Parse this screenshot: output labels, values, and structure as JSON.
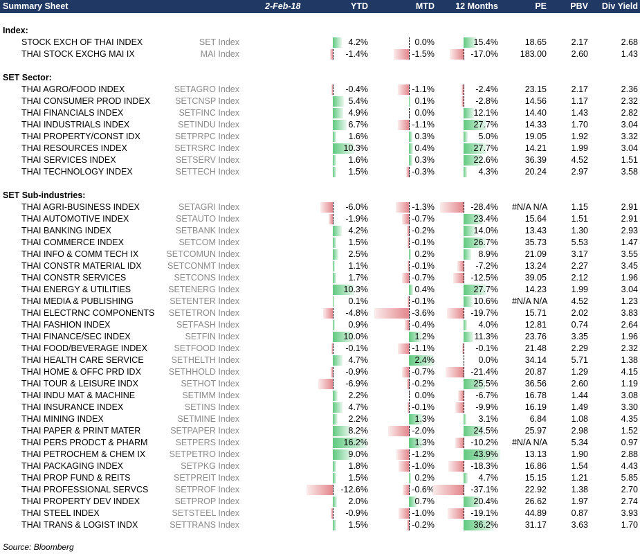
{
  "header": {
    "title": "Summary Sheet",
    "date": "2-Feb-18",
    "columns": [
      "YTD",
      "MTD",
      "12 Months",
      "PE",
      "PBV",
      "Div Yield"
    ]
  },
  "sections": [
    {
      "title": "Index:",
      "rows": [
        {
          "name": "STOCK EXCH OF THAI INDEX",
          "ticker": "SET Index",
          "ytd": "4.2%",
          "mtd": "0.0%",
          "m12": "15.4%",
          "pe": "18.65",
          "pbv": "2.17",
          "dy": "2.68",
          "ytd_v": 4.2,
          "mtd_v": 0.0,
          "m12_v": 15.4
        },
        {
          "name": "THAI STOCK EXCHG MAI IX",
          "ticker": "MAI Index",
          "ytd": "-1.4%",
          "mtd": "-1.5%",
          "m12": "-17.0%",
          "pe": "183.00",
          "pbv": "2.60",
          "dy": "1.43",
          "ytd_v": -1.4,
          "mtd_v": -1.5,
          "m12_v": -17.0
        }
      ]
    },
    {
      "title": "SET Sector:",
      "rows": [
        {
          "name": "THAI AGRO/FOOD INDEX",
          "ticker": "SETAGRO Index",
          "ytd": "-0.4%",
          "mtd": "-1.1%",
          "m12": "-2.4%",
          "pe": "23.15",
          "pbv": "2.17",
          "dy": "2.36",
          "ytd_v": -0.4,
          "mtd_v": -1.1,
          "m12_v": -2.4
        },
        {
          "name": "THAI CONSUMER PROD INDEX",
          "ticker": "SETCNSP Index",
          "ytd": "5.4%",
          "mtd": "0.1%",
          "m12": "-2.8%",
          "pe": "14.56",
          "pbv": "1.17",
          "dy": "2.32",
          "ytd_v": 5.4,
          "mtd_v": 0.1,
          "m12_v": -2.8
        },
        {
          "name": "THAI FINANCIALS INDEX",
          "ticker": "SETFINC Index",
          "ytd": "4.9%",
          "mtd": "0.0%",
          "m12": "12.1%",
          "pe": "14.40",
          "pbv": "1.43",
          "dy": "2.82",
          "ytd_v": 4.9,
          "mtd_v": 0.0,
          "m12_v": 12.1
        },
        {
          "name": "THAI INDUSTRIALS INDEX",
          "ticker": "SETINDU Index",
          "ytd": "6.7%",
          "mtd": "-1.1%",
          "m12": "27.7%",
          "pe": "14.33",
          "pbv": "1.70",
          "dy": "3.04",
          "ytd_v": 6.7,
          "mtd_v": -1.1,
          "m12_v": 27.7
        },
        {
          "name": "THAI PROPERTY/CONST IDX",
          "ticker": "SETPRPC Index",
          "ytd": "1.6%",
          "mtd": "0.3%",
          "m12": "5.0%",
          "pe": "19.05",
          "pbv": "1.92",
          "dy": "3.32",
          "ytd_v": 1.6,
          "mtd_v": 0.3,
          "m12_v": 5.0
        },
        {
          "name": "THAI RESOURCES INDEX",
          "ticker": "SETRSRC Index",
          "ytd": "10.3%",
          "mtd": "0.4%",
          "m12": "27.7%",
          "pe": "14.21",
          "pbv": "1.99",
          "dy": "3.04",
          "ytd_v": 10.3,
          "mtd_v": 0.4,
          "m12_v": 27.7
        },
        {
          "name": "THAI SERVICES INDEX",
          "ticker": "SETSERV Index",
          "ytd": "1.6%",
          "mtd": "0.3%",
          "m12": "22.6%",
          "pe": "36.39",
          "pbv": "4.52",
          "dy": "1.51",
          "ytd_v": 1.6,
          "mtd_v": 0.3,
          "m12_v": 22.6
        },
        {
          "name": "THAI TECHNOLOGY INDEX",
          "ticker": "SETTECH Index",
          "ytd": "1.5%",
          "mtd": "-0.3%",
          "m12": "4.3%",
          "pe": "20.24",
          "pbv": "2.97",
          "dy": "3.58",
          "ytd_v": 1.5,
          "mtd_v": -0.3,
          "m12_v": 4.3
        }
      ]
    },
    {
      "title": "SET Sub-industries:",
      "rows": [
        {
          "name": "THAI AGRI-BUSINESS INDEX",
          "ticker": "SETAGRI Index",
          "ytd": "-6.0%",
          "mtd": "-1.3%",
          "m12": "-28.4%",
          "pe": "#N/A N/A",
          "pbv": "1.15",
          "dy": "2.91",
          "ytd_v": -6.0,
          "mtd_v": -1.3,
          "m12_v": -28.4
        },
        {
          "name": "THAI AUTOMOTIVE INDEX",
          "ticker": "SETAUTO Index",
          "ytd": "-1.9%",
          "mtd": "-0.7%",
          "m12": "23.4%",
          "pe": "15.64",
          "pbv": "1.51",
          "dy": "2.91",
          "ytd_v": -1.9,
          "mtd_v": -0.7,
          "m12_v": 23.4
        },
        {
          "name": "THAI BANKING INDEX",
          "ticker": "SETBANK Index",
          "ytd": "4.2%",
          "mtd": "-0.2%",
          "m12": "14.0%",
          "pe": "13.43",
          "pbv": "1.30",
          "dy": "2.93",
          "ytd_v": 4.2,
          "mtd_v": -0.2,
          "m12_v": 14.0
        },
        {
          "name": "THAI COMMERCE INDEX",
          "ticker": "SETCOM Index",
          "ytd": "1.5%",
          "mtd": "-0.1%",
          "m12": "26.7%",
          "pe": "35.73",
          "pbv": "5.53",
          "dy": "1.47",
          "ytd_v": 1.5,
          "mtd_v": -0.1,
          "m12_v": 26.7
        },
        {
          "name": "THAI INFO & COMM TECH IX",
          "ticker": "SETCOMUN Index",
          "ytd": "2.5%",
          "mtd": "0.2%",
          "m12": "8.9%",
          "pe": "21.09",
          "pbv": "3.17",
          "dy": "3.55",
          "ytd_v": 2.5,
          "mtd_v": 0.2,
          "m12_v": 8.9
        },
        {
          "name": "THAI CONSTR MATERIAL IDX",
          "ticker": "SETCONMT Index",
          "ytd": "1.1%",
          "mtd": "-0.1%",
          "m12": "-7.2%",
          "pe": "13.24",
          "pbv": "2.27",
          "dy": "3.45",
          "ytd_v": 1.1,
          "mtd_v": -0.1,
          "m12_v": -7.2
        },
        {
          "name": "THAI CONSTR SERVICES",
          "ticker": "SETCONS Index",
          "ytd": "1.7%",
          "mtd": "-0.7%",
          "m12": "-12.5%",
          "pe": "39.05",
          "pbv": "2.12",
          "dy": "1.96",
          "ytd_v": 1.7,
          "mtd_v": -0.7,
          "m12_v": -12.5
        },
        {
          "name": "THAI ENERGY & UTILITIES",
          "ticker": "SETENERG Index",
          "ytd": "10.3%",
          "mtd": "0.4%",
          "m12": "27.7%",
          "pe": "14.23",
          "pbv": "1.99",
          "dy": "3.04",
          "ytd_v": 10.3,
          "mtd_v": 0.4,
          "m12_v": 27.7
        },
        {
          "name": "THAI MEDIA & PUBLISHING",
          "ticker": "SETENTER Index",
          "ytd": "0.1%",
          "mtd": "-0.1%",
          "m12": "10.6%",
          "pe": "#N/A N/A",
          "pbv": "4.52",
          "dy": "1.23",
          "ytd_v": 0.1,
          "mtd_v": -0.1,
          "m12_v": 10.6
        },
        {
          "name": "THAI ELECTRNC COMPONENTS",
          "ticker": "SETETRON Index",
          "ytd": "-4.8%",
          "mtd": "-3.6%",
          "m12": "-19.7%",
          "pe": "15.71",
          "pbv": "2.02",
          "dy": "3.83",
          "ytd_v": -4.8,
          "mtd_v": -3.6,
          "m12_v": -19.7
        },
        {
          "name": "THAI FASHION INDEX",
          "ticker": "SETFASH Index",
          "ytd": "0.9%",
          "mtd": "-0.4%",
          "m12": "4.0%",
          "pe": "12.81",
          "pbv": "0.74",
          "dy": "2.64",
          "ytd_v": 0.9,
          "mtd_v": -0.4,
          "m12_v": 4.0
        },
        {
          "name": "THAI FINANCE/SEC INDEX",
          "ticker": "SETFIN Index",
          "ytd": "10.0%",
          "mtd": "1.2%",
          "m12": "11.3%",
          "pe": "23.76",
          "pbv": "3.35",
          "dy": "1.96",
          "ytd_v": 10.0,
          "mtd_v": 1.2,
          "m12_v": 11.3
        },
        {
          "name": "THAI FOOD/BEVERAGE INDEX",
          "ticker": "SETFOOD Index",
          "ytd": "-0.1%",
          "mtd": "-1.1%",
          "m12": "-0.1%",
          "pe": "21.48",
          "pbv": "2.29",
          "dy": "2.32",
          "ytd_v": -0.1,
          "mtd_v": -1.1,
          "m12_v": -0.1
        },
        {
          "name": "THAI HEALTH CARE SERVICE",
          "ticker": "SETHELTH Index",
          "ytd": "4.7%",
          "mtd": "2.4%",
          "m12": "0.0%",
          "pe": "34.14",
          "pbv": "5.71",
          "dy": "1.38",
          "ytd_v": 4.7,
          "mtd_v": 2.4,
          "m12_v": 0.0
        },
        {
          "name": "THAI HOME & OFFC PRD IDX",
          "ticker": "SETHHOLD Index",
          "ytd": "-0.9%",
          "mtd": "-0.7%",
          "m12": "-21.4%",
          "pe": "20.87",
          "pbv": "1.29",
          "dy": "4.15",
          "ytd_v": -0.9,
          "mtd_v": -0.7,
          "m12_v": -21.4
        },
        {
          "name": "THAI TOUR & LEISURE INDX",
          "ticker": "SETHOT Index",
          "ytd": "-6.9%",
          "mtd": "-0.2%",
          "m12": "25.5%",
          "pe": "36.56",
          "pbv": "2.60",
          "dy": "1.19",
          "ytd_v": -6.9,
          "mtd_v": -0.2,
          "m12_v": 25.5
        },
        {
          "name": "THAI INDU MAT & MACHINE",
          "ticker": "SETIMM Index",
          "ytd": "2.2%",
          "mtd": "0.0%",
          "m12": "-6.7%",
          "pe": "16.78",
          "pbv": "1.44",
          "dy": "3.08",
          "ytd_v": 2.2,
          "mtd_v": 0.0,
          "m12_v": -6.7
        },
        {
          "name": "THAI INSURANCE INDEX",
          "ticker": "SETINS Index",
          "ytd": "4.7%",
          "mtd": "-0.1%",
          "m12": "-9.9%",
          "pe": "16.19",
          "pbv": "1.49",
          "dy": "3.30",
          "ytd_v": 4.7,
          "mtd_v": -0.1,
          "m12_v": -9.9
        },
        {
          "name": "THAI MINING INDEX",
          "ticker": "SETMINE Index",
          "ytd": "2.2%",
          "mtd": "1.3%",
          "m12": "3.1%",
          "pe": "6.84",
          "pbv": "1.08",
          "dy": "4.35",
          "ytd_v": 2.2,
          "mtd_v": 1.3,
          "m12_v": 3.1
        },
        {
          "name": "THAI PAPER & PRINT MATER",
          "ticker": "SETPAPER Index",
          "ytd": "8.2%",
          "mtd": "-2.0%",
          "m12": "24.5%",
          "pe": "25.97",
          "pbv": "2.98",
          "dy": "1.52",
          "ytd_v": 8.2,
          "mtd_v": -2.0,
          "m12_v": 24.5
        },
        {
          "name": "THAI PERS PRODCT & PHARM",
          "ticker": "SETPERS Index",
          "ytd": "16.2%",
          "mtd": "1.3%",
          "m12": "-10.2%",
          "pe": "#N/A N/A",
          "pbv": "5.34",
          "dy": "0.97",
          "ytd_v": 16.2,
          "mtd_v": 1.3,
          "m12_v": -10.2
        },
        {
          "name": "THAI PETROCHEM & CHEM IX",
          "ticker": "SETPETRO Index",
          "ytd": "9.0%",
          "mtd": "-1.2%",
          "m12": "43.9%",
          "pe": "13.13",
          "pbv": "1.90",
          "dy": "2.88",
          "ytd_v": 9.0,
          "mtd_v": -1.2,
          "m12_v": 43.9
        },
        {
          "name": "THAI PACKAGING INDEX",
          "ticker": "SETPKG Index",
          "ytd": "1.8%",
          "mtd": "-1.0%",
          "m12": "-18.3%",
          "pe": "16.86",
          "pbv": "1.54",
          "dy": "4.43",
          "ytd_v": 1.8,
          "mtd_v": -1.0,
          "m12_v": -18.3
        },
        {
          "name": "THAI PROP FUND & REITS",
          "ticker": "SETPREIT Index",
          "ytd": "1.5%",
          "mtd": "0.2%",
          "m12": "4.7%",
          "pe": "15.15",
          "pbv": "1.21",
          "dy": "5.85",
          "ytd_v": 1.5,
          "mtd_v": 0.2,
          "m12_v": 4.7
        },
        {
          "name": "THAI PROFESSIONAL SERVCS",
          "ticker": "SETPROF Index",
          "ytd": "-12.6%",
          "mtd": "-0.6%",
          "m12": "-37.1%",
          "pe": "22.92",
          "pbv": "1.38",
          "dy": "2.70",
          "ytd_v": -12.6,
          "mtd_v": -0.6,
          "m12_v": -37.1
        },
        {
          "name": "THAI PROPERTY DEV INDEX",
          "ticker": "SETPROP Index",
          "ytd": "2.0%",
          "mtd": "0.7%",
          "m12": "20.4%",
          "pe": "26.62",
          "pbv": "1.97",
          "dy": "2.74",
          "ytd_v": 2.0,
          "mtd_v": 0.7,
          "m12_v": 20.4
        },
        {
          "name": "THAI STEEL INDEX",
          "ticker": "SETSTEEL Index",
          "ytd": "-0.9%",
          "mtd": "-1.0%",
          "m12": "-19.1%",
          "pe": "44.89",
          "pbv": "0.87",
          "dy": "3.93",
          "ytd_v": -0.9,
          "mtd_v": -1.0,
          "m12_v": -19.1
        },
        {
          "name": "THAI TRANS & LOGIST INDX",
          "ticker": "SETTRANS Index",
          "ytd": "1.5%",
          "mtd": "-0.2%",
          "m12": "36.2%",
          "pe": "31.17",
          "pbv": "3.63",
          "dy": "1.70",
          "ytd_v": 1.5,
          "mtd_v": -0.2,
          "m12_v": 36.2
        }
      ]
    }
  ],
  "source": "Source: Bloomberg",
  "colors": {
    "header_bg": "#1f3864",
    "positive_bar": "#5fc97e",
    "negative_bar": "#e3878c",
    "ticker_text": "#8a8a8a"
  }
}
